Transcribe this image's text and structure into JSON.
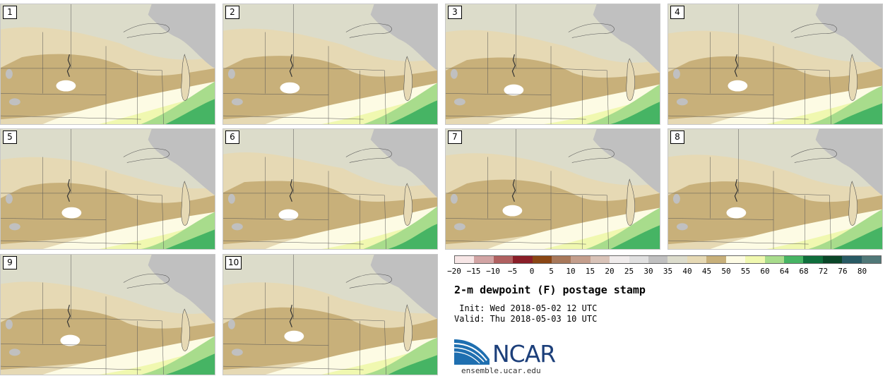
{
  "panels": [
    {
      "label": "1",
      "variant": 0
    },
    {
      "label": "2",
      "variant": 1
    },
    {
      "label": "3",
      "variant": 2
    },
    {
      "label": "4",
      "variant": 3
    },
    {
      "label": "5",
      "variant": 4
    },
    {
      "label": "6",
      "variant": 5
    },
    {
      "label": "7",
      "variant": 6
    },
    {
      "label": "8",
      "variant": 7
    },
    {
      "label": "9",
      "variant": 8
    },
    {
      "label": "10",
      "variant": 9
    }
  ],
  "colorbar": {
    "colors": [
      "#f7e6e6",
      "#d2a4a4",
      "#b06060",
      "#8a1e28",
      "#8a4614",
      "#a8785a",
      "#c49e8c",
      "#d9c3b8",
      "#f0ecec",
      "#e0e0e0",
      "#c0c0c0",
      "#dcdccc",
      "#e6d9b4",
      "#c8b07a",
      "#fdfbe4",
      "#f0f8b0",
      "#a8dc8c",
      "#46b464",
      "#0f6e3c",
      "#0a4628",
      "#285a64",
      "#507878"
    ],
    "ticks": [
      "−20",
      "−15",
      "−10",
      "−5",
      "0",
      "5",
      "10",
      "15",
      "20",
      "25",
      "30",
      "35",
      "40",
      "45",
      "50",
      "55",
      "60",
      "64",
      "68",
      "72",
      "76",
      "80"
    ]
  },
  "title": "2-m dewpoint (F) postage stamp",
  "init": " Init: Wed 2018-05-02 12 UTC",
  "valid": "Valid: Thu 2018-05-03 10 UTC",
  "logo_text": "NCAR",
  "site": "ensemble.ucar.edu"
}
